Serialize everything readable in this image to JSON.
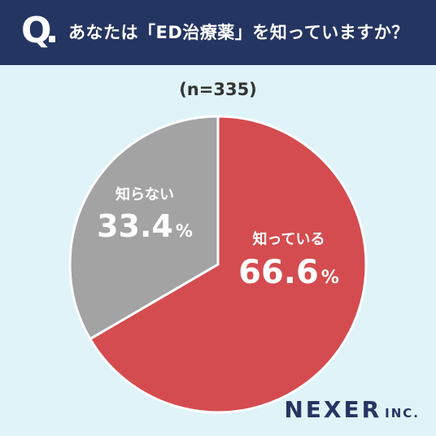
{
  "header": {
    "q_mark": "Q",
    "question": "あなたは「ED治療薬」を知っていますか？"
  },
  "sample": "(n=335)",
  "brand": {
    "name": "NEXER",
    "suffix": "INC."
  },
  "colors": {
    "header_bg": "#253562",
    "bg": "#dff3f8",
    "slice_know": "#d44c4f",
    "slice_dont": "#a3a3a3"
  },
  "chart_data": {
    "type": "pie",
    "title": "",
    "slices": [
      {
        "label": "知っている",
        "value": 66.6,
        "display": "66.6",
        "color": "#d44c4f"
      },
      {
        "label": "知らない",
        "value": 33.4,
        "display": "33.4",
        "color": "#a3a3a3"
      }
    ],
    "unit": "%"
  }
}
